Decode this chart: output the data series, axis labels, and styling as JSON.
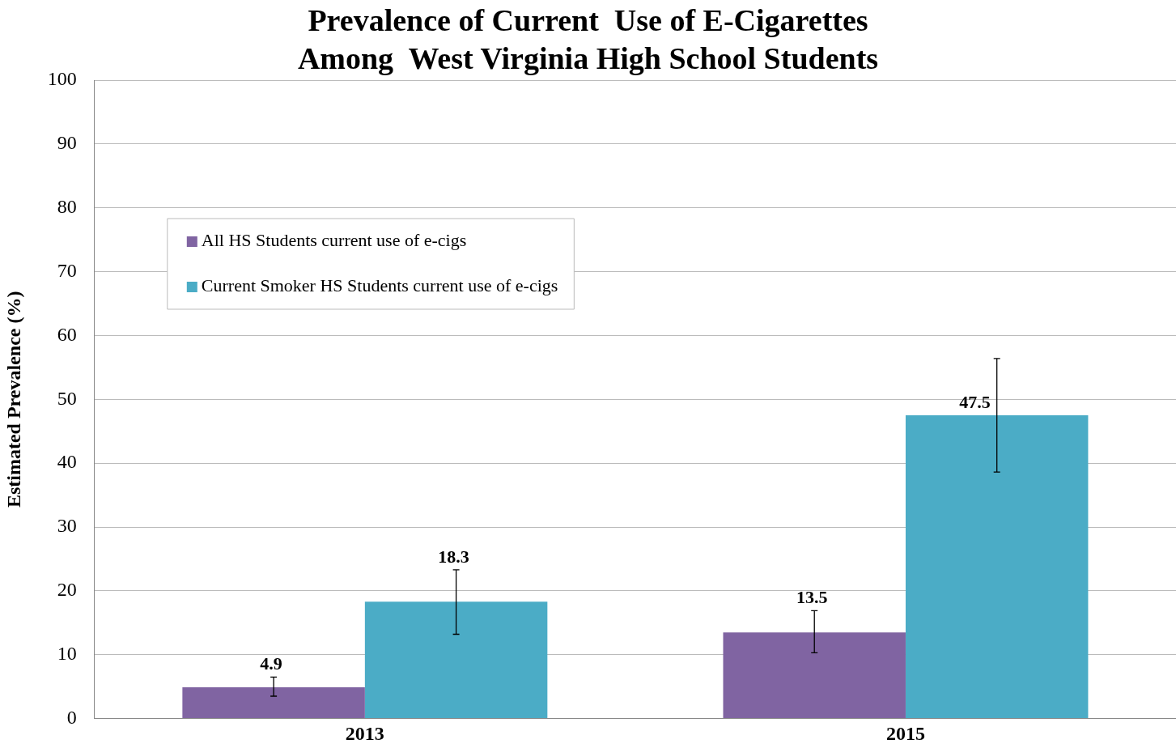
{
  "chart_data": {
    "type": "bar",
    "title": [
      "Prevalence of Current  Use of E-Cigarettes",
      "Among  West Virginia High School Students"
    ],
    "ylabel": "Estimated Prevalence (%)",
    "categories": [
      "2013",
      "2015"
    ],
    "series": [
      {
        "name": "All HS Students current use of e-cigs",
        "color": "#8064a2",
        "values": [
          4.9,
          13.5
        ],
        "errors": [
          [
            3.5,
            6.5
          ],
          [
            10.3,
            16.9
          ]
        ]
      },
      {
        "name": "Current Smoker HS Students current use of e-cigs",
        "color": "#4bacc6",
        "values": [
          18.3,
          47.5
        ],
        "errors": [
          [
            13.2,
            23.3
          ],
          [
            38.6,
            56.4
          ]
        ]
      }
    ],
    "ylim": [
      0,
      100
    ],
    "yticks": [
      0,
      10,
      20,
      30,
      40,
      50,
      60,
      70,
      80,
      90,
      100
    ],
    "grid": "y",
    "legend": "top left",
    "data_labels": true
  }
}
